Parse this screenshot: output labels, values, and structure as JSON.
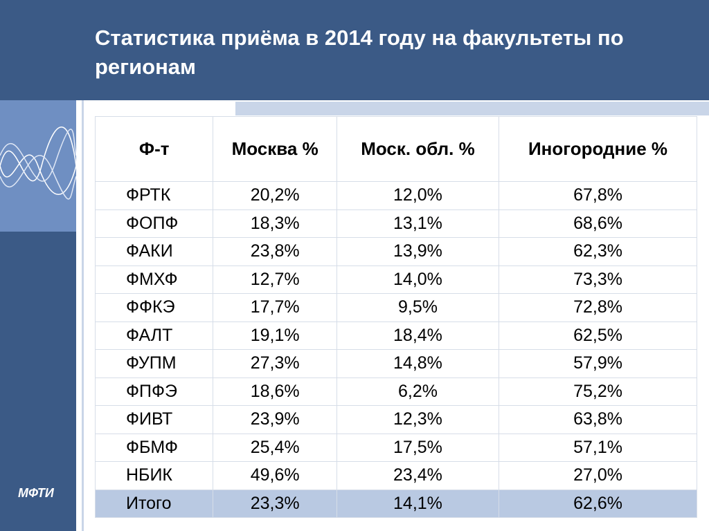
{
  "header": {
    "title": "Статистика приёма в 2014 году на факультеты по регионам"
  },
  "logo": "МФТИ",
  "table": {
    "columns": [
      "Ф-т",
      "Москва  %",
      "Моск. обл.  %",
      "Иногородние %"
    ],
    "rows": [
      [
        "ФРТК",
        "20,2%",
        "12,0%",
        "67,8%"
      ],
      [
        "ФОПФ",
        "18,3%",
        "13,1%",
        "68,6%"
      ],
      [
        "ФАКИ",
        "23,8%",
        "13,9%",
        "62,3%"
      ],
      [
        "ФМХФ",
        "12,7%",
        "14,0%",
        "73,3%"
      ],
      [
        "ФФКЭ",
        "17,7%",
        "9,5%",
        "72,8%"
      ],
      [
        "ФАЛТ",
        "19,1%",
        "18,4%",
        "62,5%"
      ],
      [
        "ФУПМ",
        "27,3%",
        "14,8%",
        "57,9%"
      ],
      [
        "ФПФЭ",
        "18,6%",
        "6,2%",
        "75,2%"
      ],
      [
        "ФИВТ",
        "23,9%",
        "12,3%",
        "63,8%"
      ],
      [
        "ФБМФ",
        "25,4%",
        "17,5%",
        "57,1%"
      ],
      [
        "НБИК",
        "49,6%",
        "23,4%",
        "27,0%"
      ],
      [
        "Итого",
        "23,3%",
        "14,1%",
        "62,6%"
      ]
    ]
  }
}
